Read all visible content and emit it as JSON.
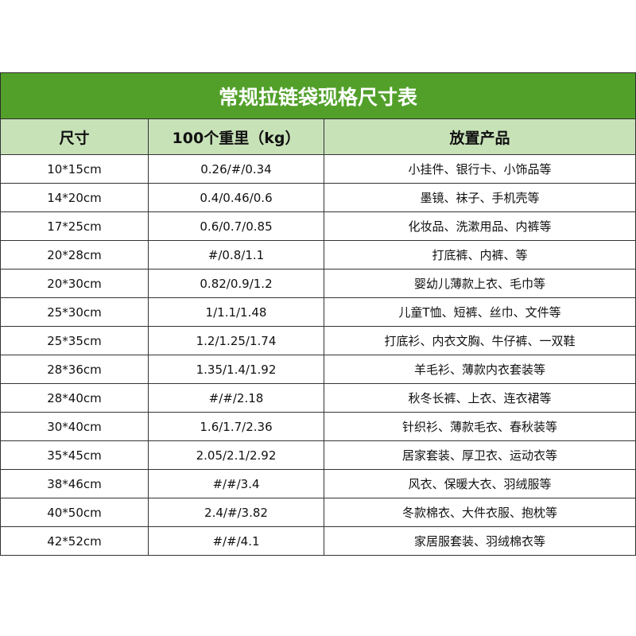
{
  "title": "常规拉链袋现格尺寸表",
  "colors": {
    "title_bg": "#52a02a",
    "header_bg": "#c8e2b8"
  },
  "headers": [
    "尺寸",
    "100个重里（kg）",
    "放置产品"
  ],
  "rows": [
    [
      "10*15cm",
      "0.26/#/0.34",
      "小挂件、银行卡、小饰品等"
    ],
    [
      "14*20cm",
      "0.4/0.46/0.6",
      "墨镜、袜子、手机壳等"
    ],
    [
      "17*25cm",
      "0.6/0.7/0.85",
      "化妆品、洗漱用品、内裤等"
    ],
    [
      "20*28cm",
      "#/0.8/1.1",
      "打底裤、内裤、等"
    ],
    [
      "20*30cm",
      "0.82/0.9/1.2",
      "婴幼儿薄款上衣、毛巾等"
    ],
    [
      "25*30cm",
      "1/1.1/1.48",
      "儿童T恤、短裤、丝巾、文件等"
    ],
    [
      "25*35cm",
      "1.2/1.25/1.74",
      "打底衫、内衣文胸、牛仔裤、一双鞋"
    ],
    [
      "28*36cm",
      "1.35/1.4/1.92",
      "羊毛衫、薄款内衣套装等"
    ],
    [
      "28*40cm",
      "#/#/2.18",
      "秋冬长裤、上衣、连衣裙等"
    ],
    [
      "30*40cm",
      "1.6/1.7/2.36",
      "针织衫、薄款毛衣、春秋装等"
    ],
    [
      "35*45cm",
      "2.05/2.1/2.92",
      "居家套装、厚卫衣、运动衣等"
    ],
    [
      "38*46cm",
      "#/#/3.4",
      "风衣、保暖大衣、羽绒服等"
    ],
    [
      "40*50cm",
      "2.4/#/3.82",
      "冬款棉衣、大件衣服、抱枕等"
    ],
    [
      "42*52cm",
      "#/#/4.1",
      "家居服套装、羽绒棉衣等"
    ]
  ]
}
